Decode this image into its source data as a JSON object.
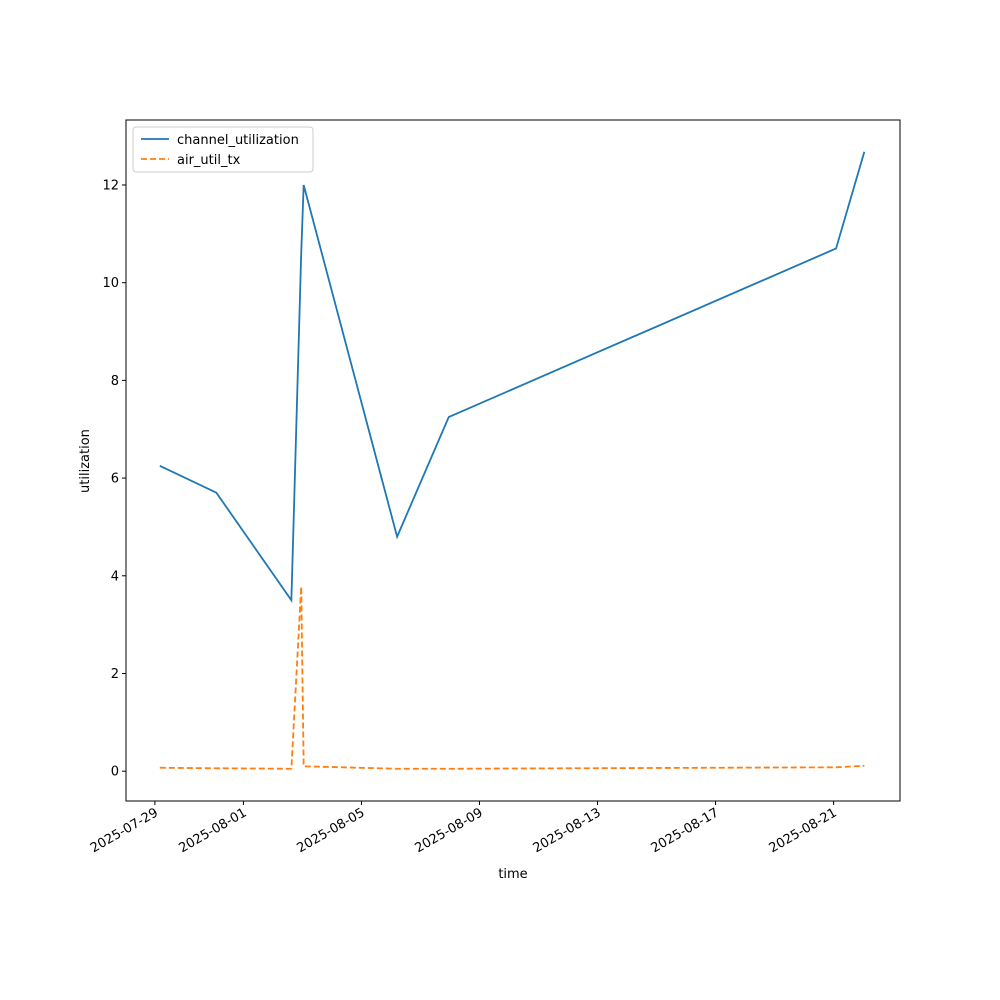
{
  "chart_data": {
    "type": "line",
    "xlabel": "time",
    "ylabel": "utilization",
    "x": [
      "2025-07-29T04:00",
      "2025-07-31T02:00",
      "2025-08-02T15:00",
      "2025-08-02T23:00",
      "2025-08-03T01:00",
      "2025-08-06T05:00",
      "2025-08-07T23:00",
      "2025-08-21T02:00",
      "2025-08-22T01:00"
    ],
    "series": [
      {
        "name": "channel_utilization",
        "color": "#1f77b4",
        "dash": "solid",
        "values": [
          6.25,
          5.7,
          3.5,
          10.6,
          12.0,
          4.8,
          7.25,
          10.7,
          12.68
        ]
      },
      {
        "name": "air_util_tx",
        "color": "#ff7f0e",
        "dash": "dashed",
        "values": [
          0.07,
          0.06,
          0.05,
          3.78,
          0.1,
          0.05,
          0.05,
          0.08,
          0.11
        ]
      }
    ],
    "xlim": [
      "2025-07-28T00:30",
      "2025-08-23T06:00"
    ],
    "xticks": [
      "2025-07-29",
      "2025-08-01",
      "2025-08-05",
      "2025-08-09",
      "2025-08-13",
      "2025-08-17",
      "2025-08-21"
    ],
    "ylim": [
      -0.61,
      13.33
    ],
    "yticks": [
      0,
      2,
      4,
      6,
      8,
      10,
      12
    ],
    "legend": "upper left"
  }
}
